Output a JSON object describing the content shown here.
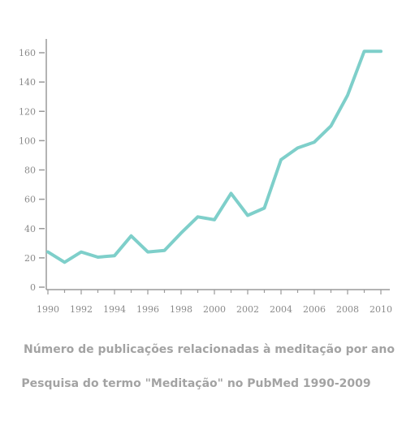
{
  "chart_data": {
    "type": "line",
    "title": "Número de publicações relacionadas à meditação por ano",
    "subtitle": "Pesquisa do termo \"Meditação\" no PubMed 1990-2009",
    "xlabel": "",
    "ylabel": "",
    "xlim": [
      1990,
      2010
    ],
    "ylim": [
      0,
      160
    ],
    "x_ticks": [
      "1990",
      "1992",
      "1994",
      "1996",
      "1998",
      "2000",
      "2002",
      "2004",
      "2006",
      "2008",
      "2010"
    ],
    "y_ticks": [
      "0",
      "20",
      "40",
      "60",
      "80",
      "100",
      "120",
      "140",
      "160"
    ],
    "grid": false,
    "legend": "none",
    "line_color": "#7ecfca",
    "axis_color": "#9a9a9a",
    "series": [
      {
        "x": [
          1990,
          1991,
          1992,
          1993,
          1994,
          1995,
          1996,
          1997,
          1998,
          1999,
          2000,
          2001,
          2002,
          2003,
          2004,
          2005,
          2006,
          2007,
          2008,
          2009,
          2010
        ],
        "values": [
          24,
          17,
          24,
          20.5,
          21.5,
          35,
          24,
          25,
          37,
          48,
          46,
          64,
          49,
          54,
          87,
          95,
          99,
          110,
          131,
          161,
          161
        ]
      }
    ]
  }
}
